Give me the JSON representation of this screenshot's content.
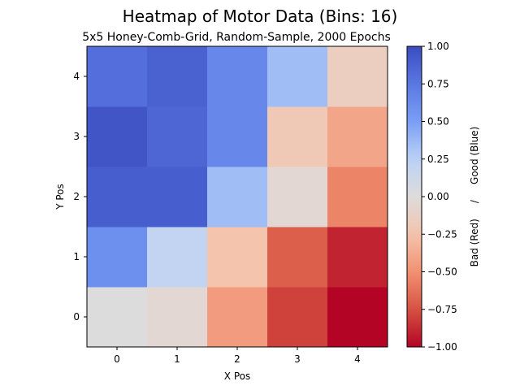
{
  "chart_data": {
    "type": "heatmap",
    "title": "Heatmap of Motor Data (Bins: 16)",
    "subtitle": "5x5 Honey-Comb-Grid, Random-Sample, 2000 Epochs",
    "xlabel": "X Pos",
    "ylabel": "Y Pos",
    "x_categories": [
      "0",
      "1",
      "2",
      "3",
      "4"
    ],
    "y_categories": [
      "0",
      "1",
      "2",
      "3",
      "4"
    ],
    "values_by_row_y": [
      [
        0.0,
        -0.05,
        -0.45,
        -0.8,
        -1.0
      ],
      [
        0.6,
        0.2,
        -0.25,
        -0.7,
        -0.9
      ],
      [
        0.9,
        0.9,
        0.35,
        -0.05,
        -0.55
      ],
      [
        0.95,
        0.85,
        0.65,
        -0.2,
        -0.4
      ],
      [
        0.8,
        0.88,
        0.65,
        0.35,
        -0.15
      ]
    ],
    "colormap": "coolwarm",
    "vmin": -1.0,
    "vmax": 1.0,
    "colorbar": {
      "label": "Bad (Red)     /     Good (Blue)",
      "ticks": [
        1.0,
        0.75,
        0.5,
        0.25,
        0.0,
        -0.25,
        -0.5,
        -0.75,
        -1.0
      ],
      "tick_labels": [
        "1.00",
        "0.75",
        "0.50",
        "0.25",
        "0.00",
        "−0.25",
        "−0.50",
        "−0.75",
        "−1.00"
      ]
    }
  }
}
